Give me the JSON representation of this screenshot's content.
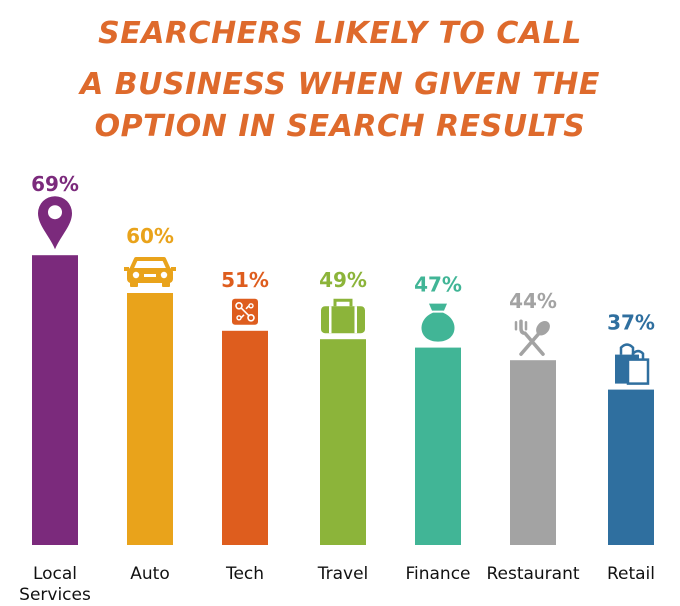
{
  "title_lines": [
    "SEARCHERS LIKELY TO CALL",
    "A BUSINESS WHEN GIVEN THE",
    "OPTION IN SEARCH RESULTS"
  ],
  "colors": {
    "title": "#de6a2c",
    "axis_label": "#111111"
  },
  "chart_data": {
    "type": "bar",
    "title": "SEARCHERS LIKELY TO CALL A BUSINESS WHEN GIVEN THE OPTION IN SEARCH RESULTS",
    "xlabel": "",
    "ylabel": "",
    "ylim": [
      0,
      100
    ],
    "unit": "%",
    "grid": false,
    "legend": "none",
    "categories": [
      [
        "Local",
        "Services"
      ],
      [
        "Auto"
      ],
      [
        "Tech"
      ],
      [
        "Travel"
      ],
      [
        "Finance"
      ],
      [
        "Restaurant"
      ],
      [
        "Retail"
      ]
    ],
    "values": [
      69,
      60,
      51,
      49,
      47,
      44,
      37
    ],
    "value_labels": [
      "69%",
      "60%",
      "51%",
      "49%",
      "47%",
      "44%",
      "37%"
    ],
    "bar_colors": [
      "#7b2a7c",
      "#e9a31b",
      "#de5d1e",
      "#8cb43a",
      "#41b596",
      "#a3a3a3",
      "#2f6f9f"
    ],
    "icons": [
      "map-pin-icon",
      "car-icon",
      "circuit-icon",
      "suitcase-icon",
      "money-bag-icon",
      "fork-spoon-icon",
      "shopping-bags-icon"
    ]
  }
}
